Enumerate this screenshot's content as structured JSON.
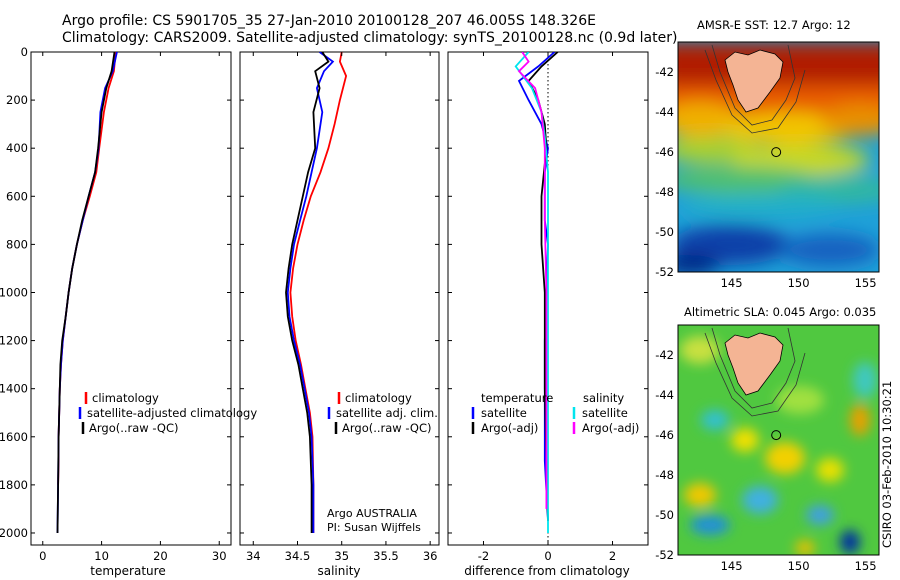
{
  "header": {
    "line1": "Argo profile: CS 5901705_35 27-Jan-2010 20100128_207 46.005S 148.326E",
    "line2": "Climatology: CARS2009. Satellite-adjusted climatology: synTS_20100128.nc (0.9d later)"
  },
  "stamp": "CSIRO 03-Feb-2010 10:30:21",
  "credit": {
    "line1": "Argo AUSTRALIA",
    "line2": "PI: Susan Wijffels"
  },
  "colors": {
    "climatology": "#ff0000",
    "satellite": "#0000ff",
    "argo": "#000000",
    "satellite_sal": "#00e5ee",
    "argo_sal": "#ff00ff"
  },
  "chart_data": [
    {
      "type": "line",
      "id": "temperature",
      "xlabel": "temperature",
      "xlim": [
        -2,
        32
      ],
      "xticks": [
        0,
        10,
        20,
        30
      ],
      "ylim": [
        0,
        2050
      ],
      "yticks": [
        0,
        200,
        400,
        600,
        800,
        1000,
        1200,
        1400,
        1600,
        1800,
        2000
      ],
      "legend": [
        "climatology",
        "satellite-adjusted climatology",
        "Argo(..raw -QC)"
      ],
      "series": [
        {
          "name": "climatology",
          "color": "#ff0000",
          "points": [
            [
              12.4,
              0
            ],
            [
              12.1,
              80
            ],
            [
              11.2,
              150
            ],
            [
              10.4,
              250
            ],
            [
              9.6,
              400
            ],
            [
              9.1,
              500
            ],
            [
              8.0,
              600
            ],
            [
              6.8,
              700
            ],
            [
              5.8,
              800
            ],
            [
              5.0,
              900
            ],
            [
              4.4,
              1000
            ],
            [
              3.9,
              1100
            ],
            [
              3.4,
              1200
            ],
            [
              3.1,
              1300
            ],
            [
              2.9,
              1400
            ],
            [
              2.8,
              1500
            ],
            [
              2.7,
              1600
            ],
            [
              2.7,
              1700
            ],
            [
              2.6,
              1800
            ]
          ]
        },
        {
          "name": "satellite-adjusted climatology",
          "color": "#0000ff",
          "points": [
            [
              12.6,
              0
            ],
            [
              11.9,
              80
            ],
            [
              10.6,
              150
            ],
            [
              9.8,
              250
            ],
            [
              9.5,
              400
            ],
            [
              8.9,
              500
            ],
            [
              7.8,
              600
            ],
            [
              6.8,
              700
            ],
            [
              5.8,
              800
            ],
            [
              5.0,
              900
            ],
            [
              4.4,
              1000
            ],
            [
              3.9,
              1100
            ],
            [
              3.4,
              1200
            ],
            [
              3.1,
              1300
            ],
            [
              2.9,
              1400
            ],
            [
              2.8,
              1500
            ],
            [
              2.7,
              1600
            ],
            [
              2.6,
              1800
            ],
            [
              2.5,
              2000
            ]
          ]
        },
        {
          "name": "Argo(..raw -QC)",
          "color": "#000000",
          "points": [
            [
              12.2,
              0
            ],
            [
              11.7,
              80
            ],
            [
              10.8,
              150
            ],
            [
              10.0,
              250
            ],
            [
              9.4,
              400
            ],
            [
              8.9,
              500
            ],
            [
              7.8,
              600
            ],
            [
              6.7,
              700
            ],
            [
              5.8,
              800
            ],
            [
              5.0,
              900
            ],
            [
              4.4,
              1000
            ],
            [
              3.9,
              1100
            ],
            [
              3.3,
              1200
            ],
            [
              3.0,
              1300
            ],
            [
              2.9,
              1400
            ],
            [
              2.8,
              1500
            ],
            [
              2.7,
              1600
            ],
            [
              2.6,
              1800
            ],
            [
              2.5,
              2000
            ]
          ]
        }
      ]
    },
    {
      "type": "line",
      "id": "salinity",
      "xlabel": "salinity",
      "xlim": [
        33.85,
        36.1
      ],
      "xticks": [
        34,
        34.5,
        35,
        35.5,
        36
      ],
      "ylim": [
        0,
        2050
      ],
      "legend": [
        "climatology",
        "satellite adj. clim.",
        "Argo(..raw -QC)"
      ],
      "series": [
        {
          "name": "climatology",
          "color": "#ff0000",
          "points": [
            [
              35.0,
              0
            ],
            [
              34.98,
              40
            ],
            [
              35.05,
              100
            ],
            [
              34.98,
              200
            ],
            [
              34.92,
              300
            ],
            [
              34.85,
              400
            ],
            [
              34.76,
              500
            ],
            [
              34.65,
              600
            ],
            [
              34.57,
              700
            ],
            [
              34.5,
              800
            ],
            [
              34.45,
              900
            ],
            [
              34.42,
              1000
            ],
            [
              34.44,
              1100
            ],
            [
              34.48,
              1200
            ],
            [
              34.54,
              1300
            ],
            [
              34.59,
              1400
            ],
            [
              34.64,
              1500
            ],
            [
              34.67,
              1600
            ],
            [
              34.68,
              1800
            ],
            [
              34.68,
              2000
            ]
          ]
        },
        {
          "name": "satellite adj. clim.",
          "color": "#0000ff",
          "points": [
            [
              34.75,
              0
            ],
            [
              34.9,
              40
            ],
            [
              34.8,
              80
            ],
            [
              34.72,
              150
            ],
            [
              34.78,
              250
            ],
            [
              34.72,
              400
            ],
            [
              34.66,
              500
            ],
            [
              34.6,
              600
            ],
            [
              34.53,
              700
            ],
            [
              34.46,
              800
            ],
            [
              34.42,
              900
            ],
            [
              34.39,
              1000
            ],
            [
              34.41,
              1100
            ],
            [
              34.46,
              1200
            ],
            [
              34.53,
              1300
            ],
            [
              34.58,
              1400
            ],
            [
              34.63,
              1500
            ],
            [
              34.66,
              1600
            ],
            [
              34.68,
              1800
            ],
            [
              34.68,
              2000
            ]
          ]
        },
        {
          "name": "Argo(..raw -QC)",
          "color": "#000000",
          "points": [
            [
              34.78,
              0
            ],
            [
              34.85,
              40
            ],
            [
              34.7,
              80
            ],
            [
              34.75,
              150
            ],
            [
              34.68,
              250
            ],
            [
              34.7,
              400
            ],
            [
              34.62,
              500
            ],
            [
              34.56,
              600
            ],
            [
              34.5,
              700
            ],
            [
              34.44,
              800
            ],
            [
              34.4,
              900
            ],
            [
              34.37,
              1000
            ],
            [
              34.39,
              1100
            ],
            [
              34.44,
              1200
            ],
            [
              34.51,
              1300
            ],
            [
              34.56,
              1400
            ],
            [
              34.61,
              1500
            ],
            [
              34.64,
              1600
            ],
            [
              34.66,
              1800
            ],
            [
              34.66,
              2000
            ]
          ]
        }
      ]
    },
    {
      "type": "line",
      "id": "difference",
      "xlabel": "difference from climatology",
      "xlim": [
        -3.1,
        3.1
      ],
      "xticks": [
        -2,
        0,
        2
      ],
      "ylim": [
        0,
        2050
      ],
      "legend_temperature": {
        "heading": "temperature",
        "items": [
          "satellite",
          "Argo(-adj)"
        ]
      },
      "legend_salinity": {
        "heading": "salinity",
        "items": [
          "satellite",
          "Argo(-adj)"
        ]
      },
      "series": [
        {
          "name": "temperature satellite",
          "color": "#0000ff",
          "points": [
            [
              0.2,
              0
            ],
            [
              -0.3,
              60
            ],
            [
              -0.9,
              120
            ],
            [
              -0.6,
              200
            ],
            [
              -0.2,
              300
            ],
            [
              0.0,
              400
            ],
            [
              -0.1,
              500
            ],
            [
              -0.1,
              700
            ],
            [
              0.0,
              800
            ],
            [
              -0.05,
              1000
            ],
            [
              -0.1,
              1200
            ],
            [
              -0.1,
              1500
            ],
            [
              -0.1,
              1700
            ],
            [
              0.0,
              1950
            ]
          ]
        },
        {
          "name": "temperature Argo(-adj)",
          "color": "#000000",
          "points": [
            [
              0.3,
              0
            ],
            [
              -0.2,
              60
            ],
            [
              -0.6,
              120
            ],
            [
              -0.3,
              200
            ],
            [
              -0.1,
              300
            ],
            [
              -0.05,
              400
            ],
            [
              -0.2,
              600
            ],
            [
              -0.2,
              800
            ],
            [
              -0.1,
              1000
            ],
            [
              -0.1,
              1200
            ],
            [
              -0.1,
              1400
            ],
            [
              -0.05,
              1700
            ],
            [
              0.0,
              1950
            ]
          ]
        },
        {
          "name": "salinity satellite",
          "color": "#00e5ee",
          "points": [
            [
              -0.6,
              0
            ],
            [
              -1.0,
              60
            ],
            [
              -0.5,
              150
            ],
            [
              -0.2,
              250
            ],
            [
              -0.1,
              350
            ],
            [
              0.0,
              500
            ],
            [
              0.0,
              700
            ],
            [
              0.0,
              900
            ],
            [
              0.0,
              1200
            ],
            [
              0.0,
              1500
            ],
            [
              0.0,
              1800
            ],
            [
              0.0,
              2000
            ]
          ]
        },
        {
          "name": "salinity Argo(-adj)",
          "color": "#ff00ff",
          "points": [
            [
              -0.8,
              0
            ],
            [
              -0.6,
              40
            ],
            [
              -0.9,
              80
            ],
            [
              -0.4,
              150
            ],
            [
              -0.2,
              250
            ],
            [
              -0.1,
              400
            ],
            [
              -0.1,
              700
            ],
            [
              -0.05,
              1000
            ],
            [
              -0.05,
              1300
            ],
            [
              -0.05,
              1600
            ],
            [
              -0.05,
              1900
            ]
          ]
        }
      ]
    },
    {
      "type": "heatmap",
      "id": "sst-map",
      "title": "AMSR-E SST: 12.7 Argo: 12",
      "xlim": [
        141,
        156
      ],
      "xticks": [
        145,
        150,
        155
      ],
      "ylim": [
        -52,
        -40.5
      ],
      "yticks": [
        -42,
        -44,
        -46,
        -48,
        -50,
        -52
      ],
      "float_position": [
        148.326,
        -46.005
      ]
    },
    {
      "type": "heatmap",
      "id": "sla-map",
      "title": "Altimetric SLA: 0.045 Argo: 0.035",
      "xlim": [
        141,
        156
      ],
      "xticks": [
        145,
        150,
        155
      ],
      "ylim": [
        -52,
        -40.5
      ],
      "yticks": [
        -42,
        -44,
        -46,
        -48,
        -50,
        -52
      ],
      "float_position": [
        148.326,
        -46.005
      ]
    }
  ]
}
